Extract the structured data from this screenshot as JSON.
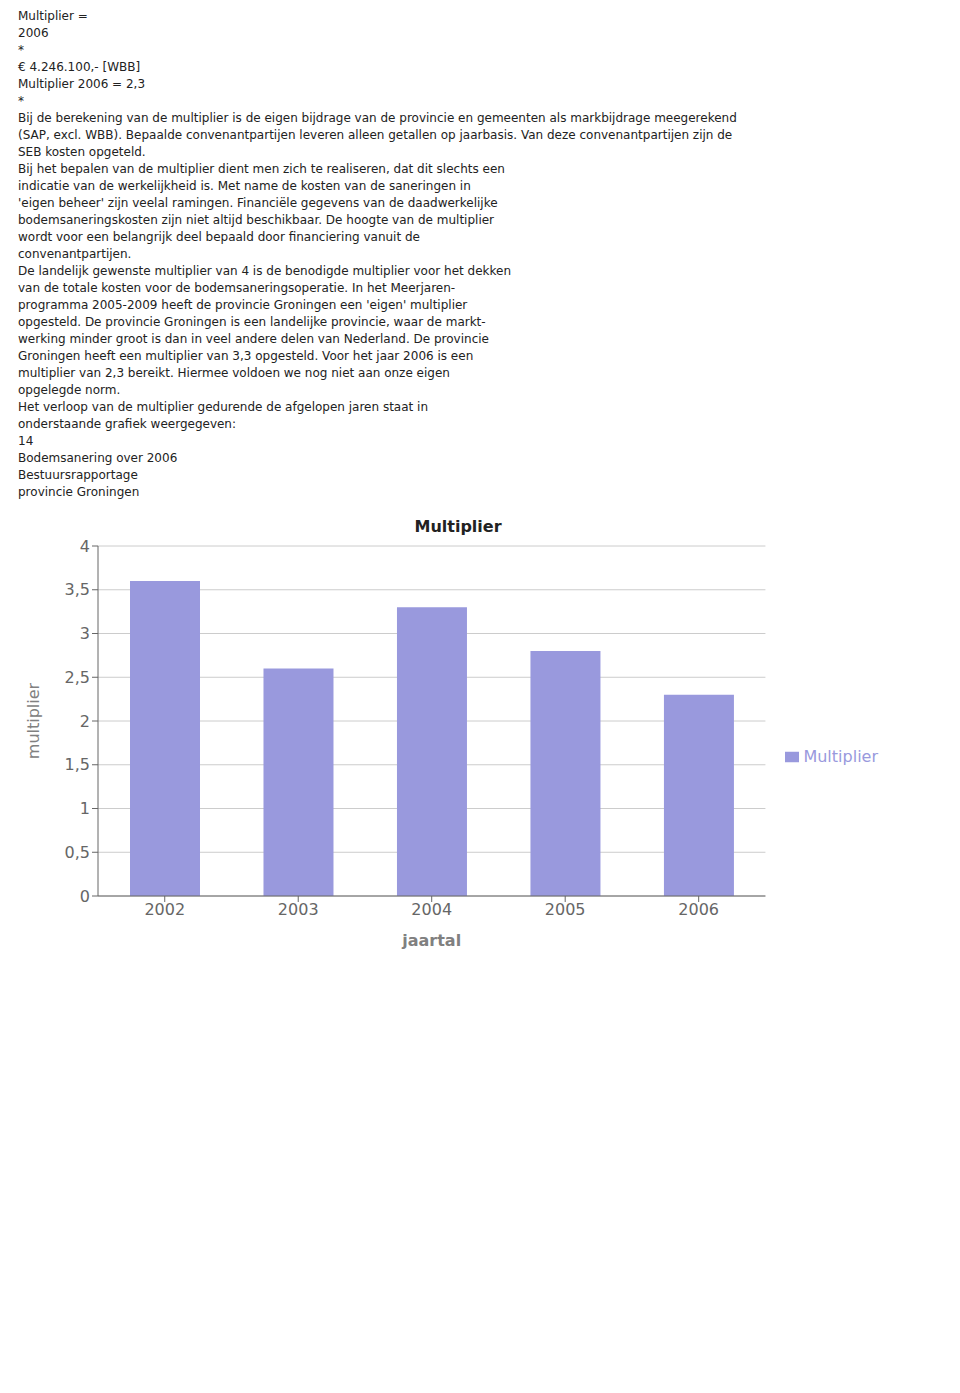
{
  "chart_data": {
    "type": "bar",
    "title": "Multiplier",
    "xlabel": "jaartal",
    "ylabel": "multiplier",
    "categories": [
      "2002",
      "2003",
      "2004",
      "2005",
      "2006"
    ],
    "series": [
      {
        "name": "Multiplier",
        "color": "#9999dd",
        "values": [
          3.6,
          2.6,
          3.3,
          2.8,
          2.3
        ]
      }
    ],
    "ylim": [
      0,
      4
    ],
    "yticks": [
      0,
      {
        "value": 0.5,
        "label": "0,5"
      },
      1,
      {
        "value": 1.5,
        "label": "1,5"
      },
      2,
      {
        "value": 2.5,
        "label": "2,5"
      },
      3,
      {
        "value": 3.5,
        "label": "3,5"
      },
      4
    ],
    "grid": true,
    "legend": "right",
    "annotations": [
      "Multiplier =",
      "2006",
      "*",
      "€ 4.246.100,- [WBB]",
      "Multiplier 2006 = 2,3",
      "*",
      "Bij de berekening van de multiplier is de eigen bijdrage van de provincie en gemeenten als markbijdrage meegerekend",
      "(SAP, excl. WBB). Bepaalde convenantpartijen leveren alleen getallen op jaarbasis. Van deze convenantpartijen zijn de",
      "SEB kosten opgeteld.",
      "Bij het bepalen van de multiplier dient men zich te realiseren, dat dit slechts een",
      "indicatie van de werkelijkheid is. Met name de kosten van de saneringen in",
      "'eigen beheer' zijn veelal ramingen. Financiële gegevens van de daadwerkelijke",
      "bodemsaneringskosten zijn niet altijd beschikbaar. De hoogte van de multiplier",
      "wordt voor een belangrijk deel bepaald door financiering vanuit de",
      "convenantpartijen.",
      "De landelijk gewenste multiplier van 4 is de benodigde multiplier voor het dekken",
      "van de totale kosten voor de bodemsaneringsoperatie. In het Meerjaren-",
      "programma 2005-2009 heeft de provincie Groningen een 'eigen' multiplier",
      "opgesteld. De provincie Groningen is een landelijke provincie, waar de markt-",
      "werking minder groot is dan in veel andere delen van Nederland. De provincie",
      "Groningen heeft een multiplier van 3,3 opgesteld. Voor het jaar 2006 is een",
      "multiplier van 2,3 bereikt. Hiermee voldoen we nog niet aan onze eigen",
      "opgelegde norm.",
      "Het verloop van de multiplier gedurende de afgelopen jaren staat in",
      "onderstaande grafiek weergegeven:",
      "14",
      "Bodemsanering over 2006",
      "Bestuursrapportage",
      "provincie Groningen"
    ]
  }
}
